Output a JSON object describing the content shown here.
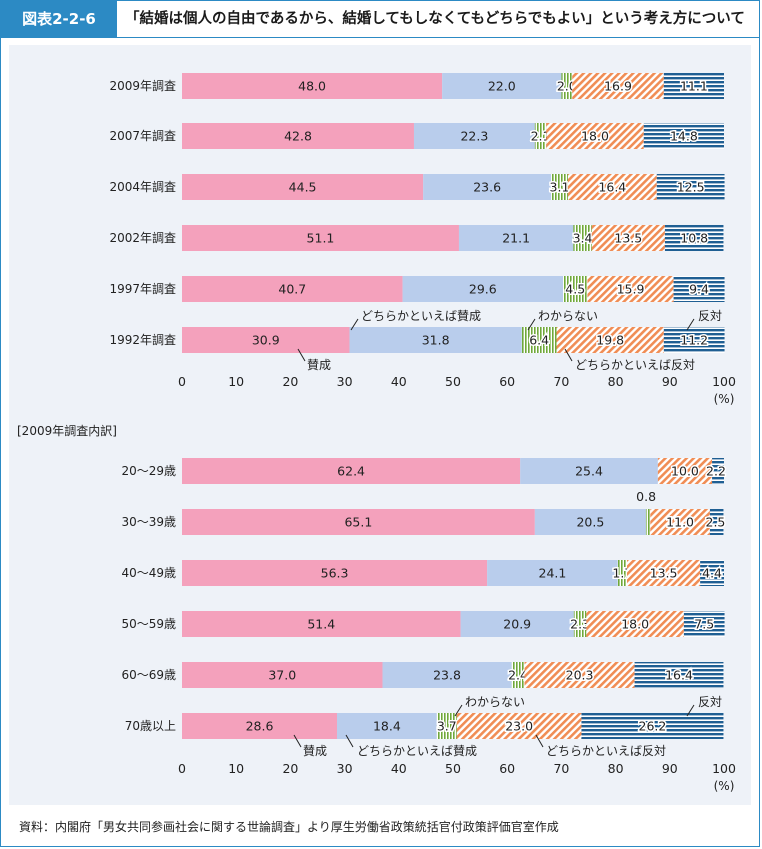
{
  "header": {
    "label": "図表2-2-6",
    "title": "「結婚は個人の自由であるから、結婚してもしなくてもどちらでもよい」という考え方について"
  },
  "source": "資料：内閣府「男女共同参画社会に関する世論調査」より厚生労働省政策統括官付政策評価官室作成",
  "colors": {
    "agree": "#f4a1bc",
    "somewhat_agree": "#b9cdec",
    "dont_know": "#7fb34a",
    "somewhat_disagree": "#f08d55",
    "disagree": "#1f5f93"
  },
  "chart_data": [
    {
      "type": "bar",
      "orientation": "horizontal-stacked",
      "title": "",
      "categories": [
        "2009年調査",
        "2007年調査",
        "2004年調査",
        "2002年調査",
        "1997年調査",
        "1992年調査"
      ],
      "series": [
        {
          "name": "賛成",
          "values": [
            48.0,
            42.8,
            44.5,
            51.1,
            40.7,
            30.9
          ]
        },
        {
          "name": "どちらかといえば賛成",
          "values": [
            22.0,
            22.3,
            23.6,
            21.1,
            29.6,
            31.8
          ]
        },
        {
          "name": "わからない",
          "values": [
            2.0,
            2.1,
            3.1,
            3.4,
            4.5,
            6.4
          ]
        },
        {
          "name": "どちらかといえば反対",
          "values": [
            16.9,
            18.0,
            16.4,
            13.5,
            15.9,
            19.8
          ]
        },
        {
          "name": "反対",
          "values": [
            11.1,
            14.8,
            12.5,
            10.8,
            9.4,
            11.2
          ]
        }
      ],
      "xlim": [
        0,
        100
      ],
      "xticks": [
        "0",
        "10",
        "20",
        "30",
        "40",
        "50",
        "60",
        "70",
        "80",
        "90",
        "100"
      ],
      "xunit": "(%)",
      "annotations": [
        "どちらかといえば賛成",
        "わからない",
        "反対",
        "賛成",
        "どちらかといえば反対"
      ]
    },
    {
      "type": "bar",
      "orientation": "horizontal-stacked",
      "title": "[2009年調査内訳]",
      "categories": [
        "20〜29歳",
        "30〜39歳",
        "40〜49歳",
        "50〜59歳",
        "60〜69歳",
        "70歳以上"
      ],
      "series": [
        {
          "name": "賛成",
          "values": [
            62.4,
            65.1,
            56.3,
            51.4,
            37.0,
            28.6
          ]
        },
        {
          "name": "どちらかといえば賛成",
          "values": [
            25.4,
            20.5,
            24.1,
            20.9,
            23.8,
            18.4
          ]
        },
        {
          "name": "わからない",
          "values": [
            0,
            0.8,
            1.7,
            2.3,
            2.4,
            3.7
          ]
        },
        {
          "name": "どちらかといえば反対",
          "values": [
            10.0,
            11.0,
            13.5,
            18.0,
            20.3,
            23.0
          ]
        },
        {
          "name": "反対",
          "values": [
            2.2,
            2.5,
            4.4,
            7.5,
            16.4,
            26.2
          ]
        }
      ],
      "labels": [
        [
          "62.4",
          "25.4",
          "",
          "10.0",
          "2.2"
        ],
        [
          "65.1",
          "20.5",
          "0.8",
          "11.0",
          "2.5"
        ],
        [
          "56.3",
          "24.1",
          "1.7",
          "13.5",
          "4.4"
        ],
        [
          "51.4",
          "20.9",
          "2.3",
          "18.0",
          "7.5"
        ],
        [
          "37.0",
          "23.8",
          "2.4",
          "20.3",
          "16.4"
        ],
        [
          "28.6",
          "18.4",
          "3.7",
          "23.0",
          "26.2"
        ]
      ],
      "xlim": [
        0,
        100
      ],
      "xticks": [
        "0",
        "10",
        "20",
        "30",
        "40",
        "50",
        "60",
        "70",
        "80",
        "90",
        "100"
      ],
      "xunit": "(%)",
      "annotations": [
        "わからない",
        "反対",
        "賛成",
        "どちらかといえば賛成",
        "どちらかといえば反対"
      ]
    }
  ]
}
